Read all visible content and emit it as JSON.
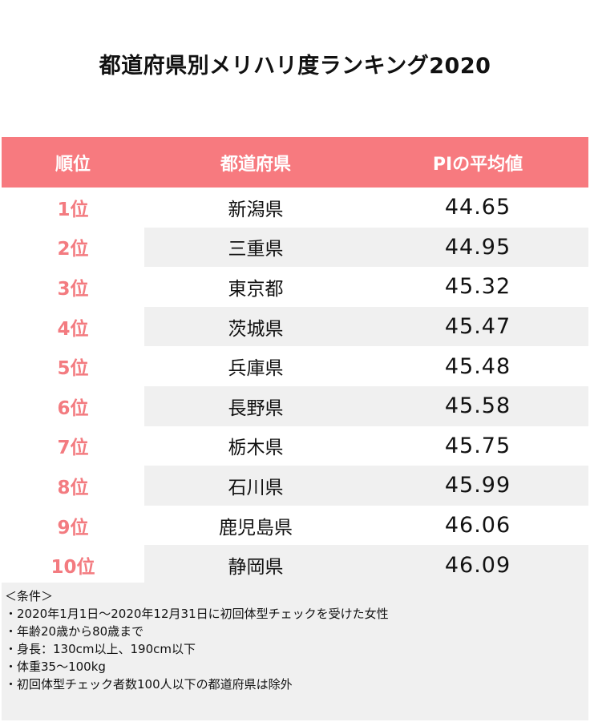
{
  "title": "都道府県別メリハリ度ランキング2020",
  "table": {
    "headers": {
      "rank": "順位",
      "prefecture": "都道府県",
      "value": "PIの平均値"
    },
    "rows": [
      {
        "rank": "1位",
        "prefecture": "新潟県",
        "value": "44.65"
      },
      {
        "rank": "2位",
        "prefecture": "三重県",
        "value": "44.95"
      },
      {
        "rank": "3位",
        "prefecture": "東京都",
        "value": "45.32"
      },
      {
        "rank": "4位",
        "prefecture": "茨城県",
        "value": "45.47"
      },
      {
        "rank": "5位",
        "prefecture": "兵庫県",
        "value": "45.48"
      },
      {
        "rank": "6位",
        "prefecture": "長野県",
        "value": "45.58"
      },
      {
        "rank": "7位",
        "prefecture": "栃木県",
        "value": "45.75"
      },
      {
        "rank": "8位",
        "prefecture": "石川県",
        "value": "45.99"
      },
      {
        "rank": "9位",
        "prefecture": "鹿児島県",
        "value": "46.06"
      },
      {
        "rank": "10位",
        "prefecture": "静岡県",
        "value": "46.09"
      }
    ]
  },
  "notes": {
    "heading": "＜条件＞",
    "items": [
      "・2020年1月1日～2020年12月31日に初回体型チェックを受けた女性",
      "・年齢20歳から80歳まで",
      "・身長：130cm以上、190cm以下",
      "・体重35～100kg",
      "・初回体型チェック者数100人以下の都道府県は除外"
    ]
  },
  "colors": {
    "header_bg": "#f77a7f",
    "rank_text": "#f37b80",
    "stripe_bg": "#f0f0f0"
  }
}
